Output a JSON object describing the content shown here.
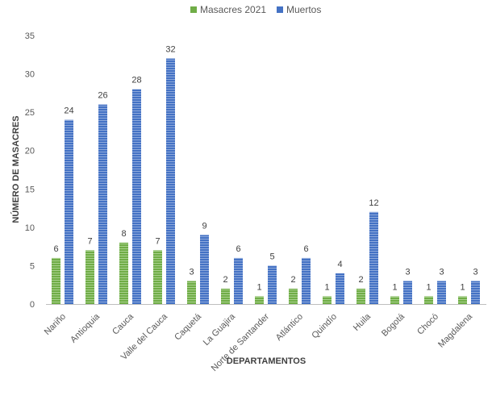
{
  "chart_data": {
    "type": "bar",
    "categories": [
      "Nariño",
      "Antioquia",
      "Cauca",
      "Valle del Cauca",
      "Caquetá",
      "La Guajira",
      "Norte de Santander",
      "Atlántico",
      "Quindío",
      "Huila",
      "Bogotá",
      "Chocó",
      "Magdalena"
    ],
    "series": [
      {
        "name": "Masacres 2021",
        "values": [
          6,
          7,
          8,
          7,
          3,
          2,
          1,
          2,
          1,
          2,
          1,
          1,
          1
        ],
        "color": "#70ad47"
      },
      {
        "name": "Muertos",
        "values": [
          24,
          26,
          28,
          32,
          9,
          6,
          5,
          6,
          4,
          12,
          3,
          3,
          3
        ],
        "color": "#4472c4"
      }
    ],
    "xlabel": "DEPARTAMENTOS",
    "ylabel": "NÚMERO DE MASACRES",
    "ylim": [
      0,
      35
    ],
    "yticks": [
      0,
      5,
      10,
      15,
      20,
      25,
      30,
      35
    ],
    "grid": false,
    "legend_position": "top",
    "data_labels": true
  }
}
